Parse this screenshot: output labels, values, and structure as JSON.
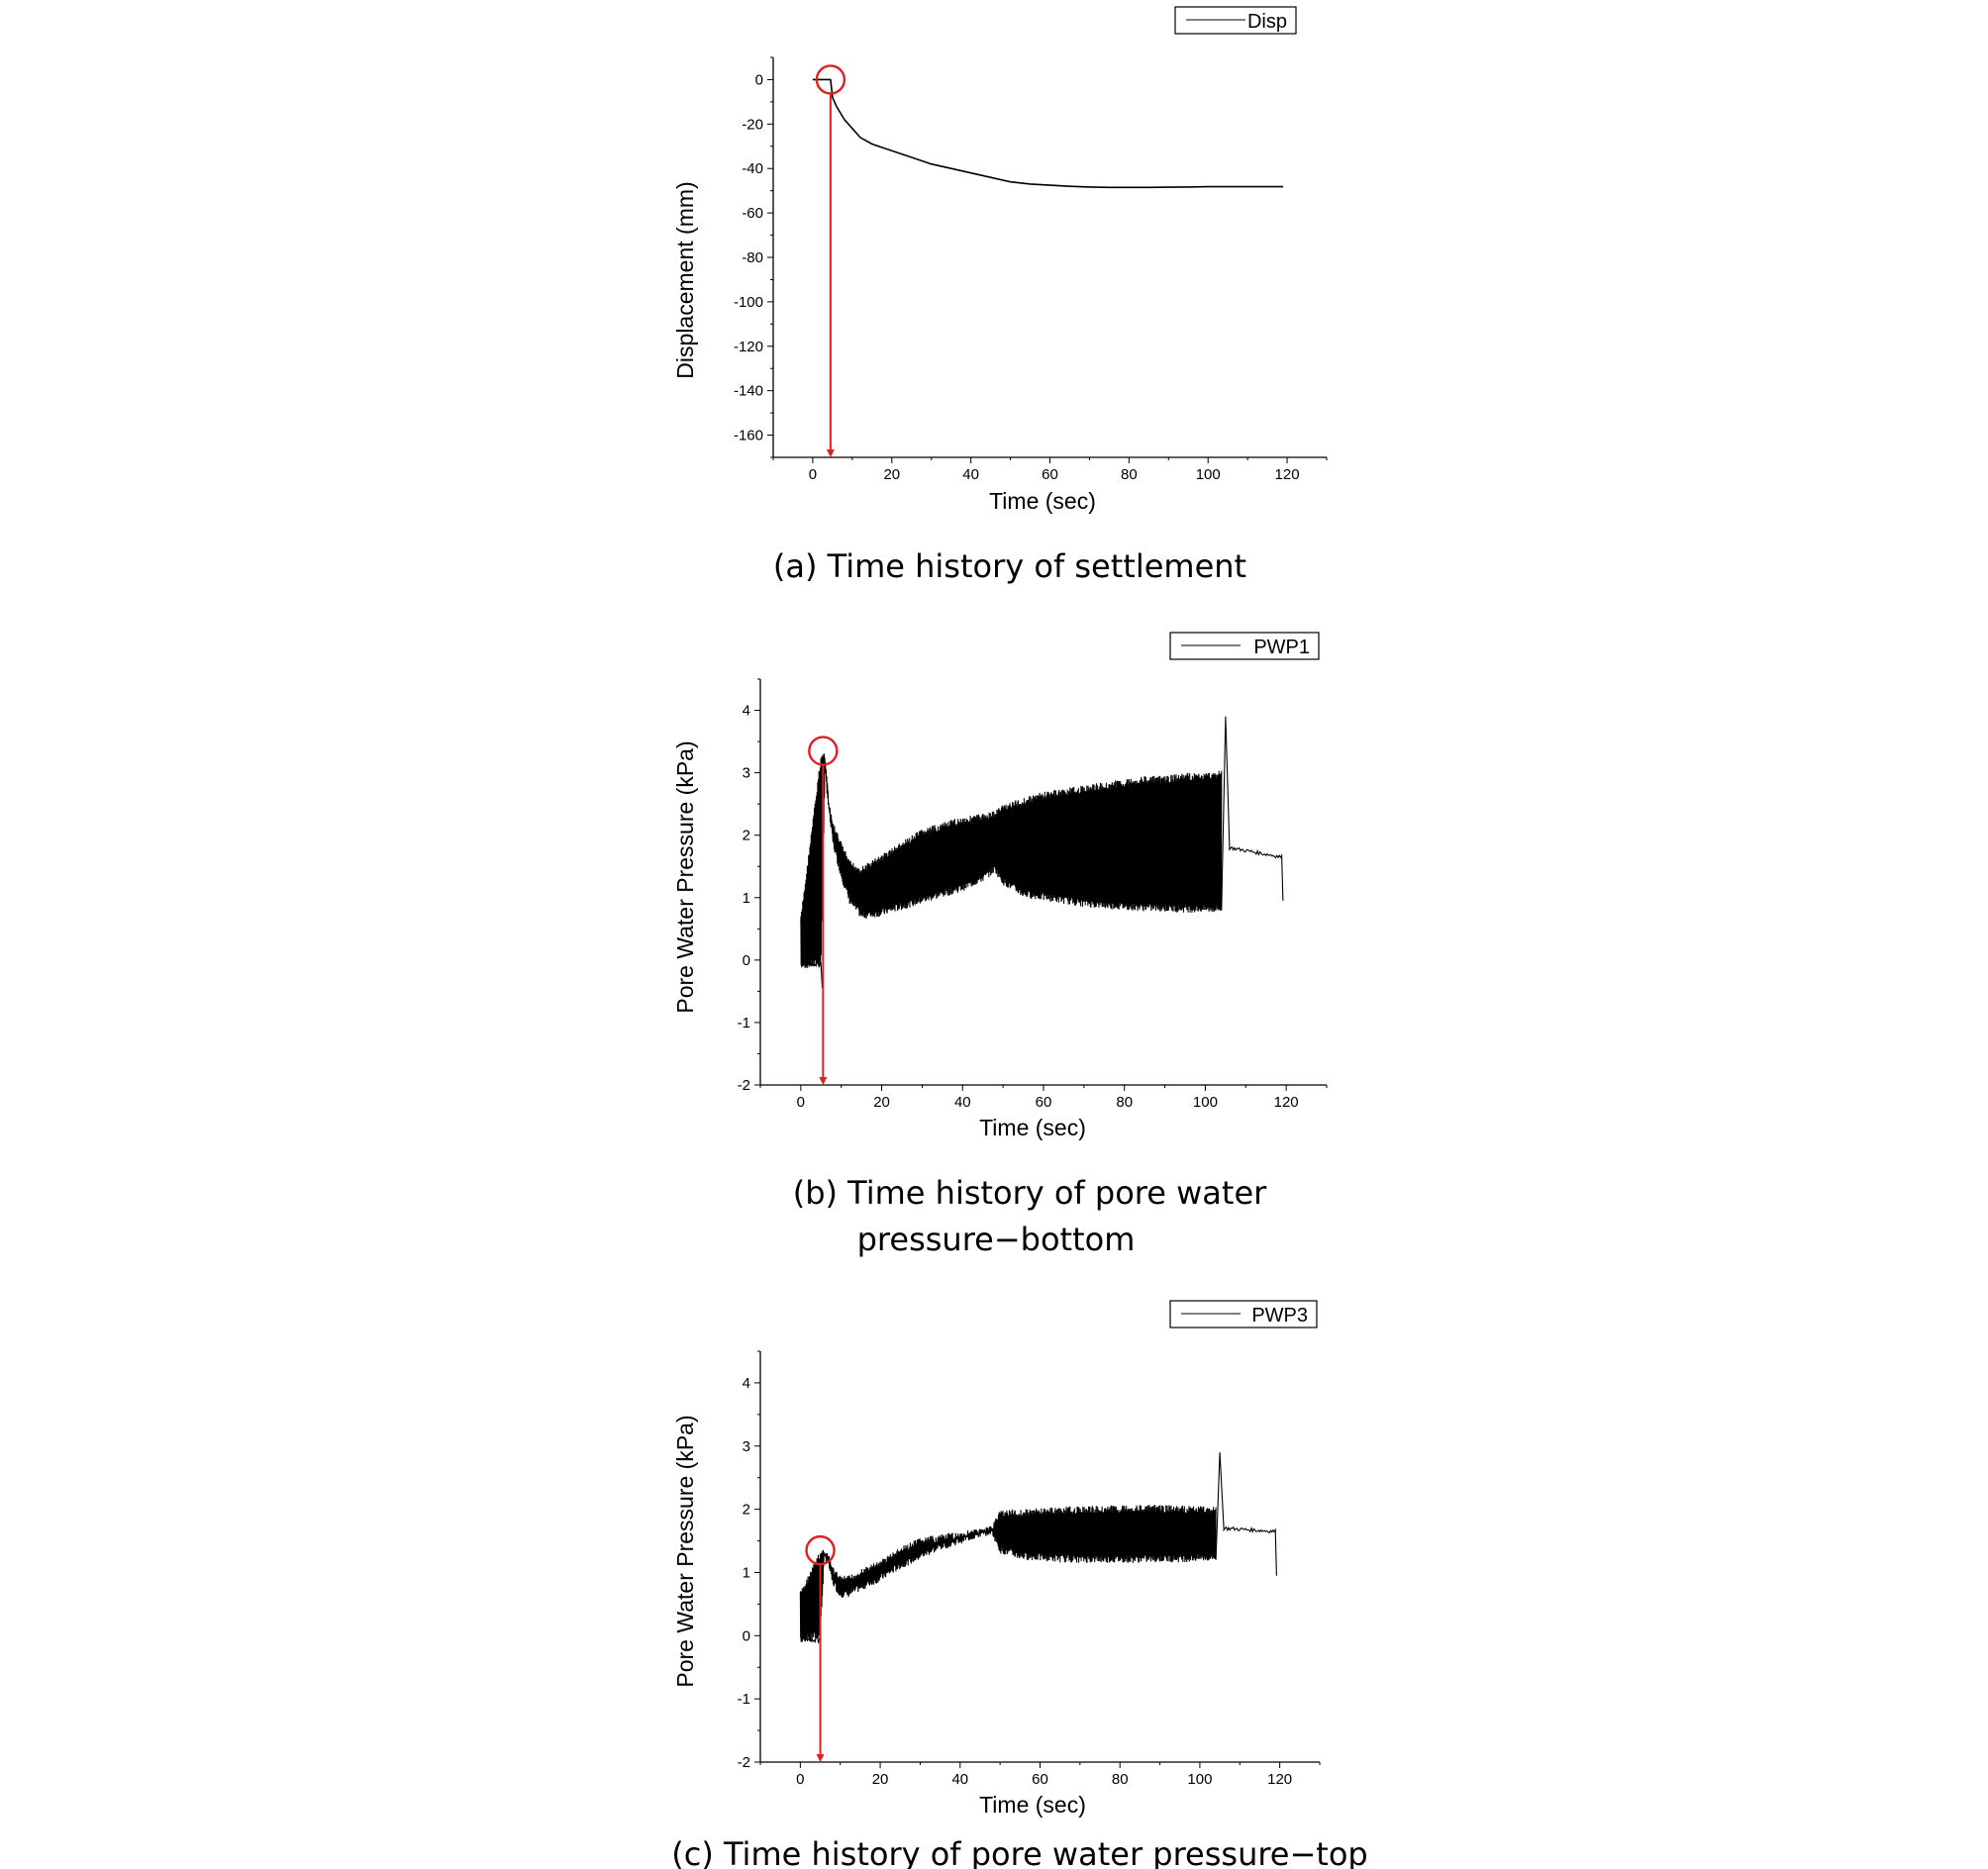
{
  "chart_data": [
    {
      "id": "a",
      "type": "line",
      "caption": "(a)  Time  history  of  settlement",
      "xlabel": "Time (sec)",
      "ylabel": "Displacement (mm)",
      "xlim": [
        -10,
        130
      ],
      "ylim": [
        -170,
        10
      ],
      "xticks": [
        0,
        20,
        40,
        60,
        80,
        100,
        120
      ],
      "yticks": [
        0,
        -20,
        -40,
        -60,
        -80,
        -100,
        -120,
        -140,
        -160
      ],
      "legend": [
        "Disp"
      ],
      "legend_position": "top-right",
      "grid": false,
      "series": [
        {
          "name": "Disp",
          "x": [
            0,
            4.5,
            5,
            6,
            7,
            8,
            10,
            12,
            15,
            20,
            25,
            30,
            35,
            40,
            45,
            50,
            55,
            60,
            65,
            70,
            75,
            80,
            85,
            90,
            95,
            100,
            105,
            110,
            115,
            119
          ],
          "y": [
            0,
            0,
            -8,
            -12,
            -15,
            -18,
            -22,
            -26,
            -29,
            -32,
            -35,
            -38,
            -40,
            -42,
            -44,
            -46,
            -47,
            -47.5,
            -48,
            -48.3,
            -48.5,
            -48.5,
            -48.5,
            -48.4,
            -48.3,
            -48.2,
            -48.2,
            -48.2,
            -48.2,
            -48.2
          ]
        }
      ],
      "annotations": [
        {
          "type": "circle",
          "x": 4.5,
          "y": 0
        },
        {
          "type": "arrow",
          "x": 4.5,
          "y_from": 0,
          "y_to": -170
        }
      ]
    },
    {
      "id": "b",
      "type": "line",
      "caption_lines": [
        "(b)  Time  history  of  pore  water",
        "pressure−bottom"
      ],
      "xlabel": "Time (sec)",
      "ylabel": "Pore Water Pressure (kPa)",
      "xlim": [
        -10,
        130
      ],
      "ylim": [
        -2,
        4.5
      ],
      "xticks": [
        0,
        20,
        40,
        60,
        80,
        100,
        120
      ],
      "yticks": [
        -2,
        -1,
        0,
        1,
        2,
        3,
        4
      ],
      "legend": [
        "PWP1"
      ],
      "legend_position": "top-right",
      "grid": false,
      "series": [
        {
          "name": "PWP1",
          "x": [
            0,
            5,
            6,
            7,
            8,
            10,
            12,
            15,
            20,
            25,
            30,
            35,
            40,
            45,
            48,
            50,
            55,
            60,
            65,
            70,
            75,
            80,
            85,
            90,
            95,
            100,
            104
          ],
          "upper": [
            0.7,
            3.3,
            3.35,
            2.5,
            2.2,
            1.9,
            1.6,
            1.5,
            1.7,
            1.9,
            2.1,
            2.2,
            2.3,
            2.35,
            2.4,
            2.5,
            2.6,
            2.7,
            2.75,
            2.8,
            2.85,
            2.9,
            2.95,
            2.95,
            3.0,
            3.0,
            3.05
          ],
          "lower": [
            -0.15,
            -0.1,
            3.0,
            2.3,
            1.8,
            1.3,
            0.9,
            0.65,
            0.7,
            0.8,
            0.9,
            1.0,
            1.1,
            1.25,
            1.4,
            1.2,
            1.0,
            0.95,
            0.9,
            0.85,
            0.82,
            0.8,
            0.78,
            0.77,
            0.76,
            0.76,
            0.76
          ],
          "tail": {
            "x": [
              104,
              105,
              106,
              110,
              115,
              119,
              119.2
            ],
            "y": [
              0.8,
              3.9,
              1.8,
              1.72,
              1.68,
              1.65,
              0.95
            ]
          },
          "start_spike": {
            "x": [
              0,
              0.2,
              0.3,
              5.3
            ],
            "y": [
              0.7,
              -0.1,
              -0.05,
              -0.45
            ]
          }
        }
      ],
      "annotations": [
        {
          "type": "circle",
          "x": 5.5,
          "y": 3.35
        },
        {
          "type": "arrow",
          "x": 5.5,
          "y_from": 3.35,
          "y_to": -2
        }
      ]
    },
    {
      "id": "c",
      "type": "line",
      "caption": "(c)  Time  history  of  pore  water  pressure−top",
      "xlabel": "Time (sec)",
      "ylabel": "Pore Water Pressure (kPa)",
      "xlim": [
        -10,
        130
      ],
      "ylim": [
        -2,
        4.5
      ],
      "xticks": [
        0,
        20,
        40,
        60,
        80,
        100,
        120
      ],
      "yticks": [
        -2,
        -1,
        0,
        1,
        2,
        3,
        4
      ],
      "legend": [
        "PWP3"
      ],
      "legend_position": "top-right",
      "grid": false,
      "series": [
        {
          "name": "PWP3",
          "x": [
            0,
            5,
            6,
            7,
            8,
            10,
            12,
            15,
            20,
            25,
            30,
            35,
            40,
            45,
            48,
            50,
            55,
            60,
            65,
            70,
            75,
            80,
            85,
            90,
            95,
            100,
            104
          ],
          "upper": [
            0.7,
            1.35,
            1.4,
            1.3,
            1.1,
            0.95,
            0.95,
            1.05,
            1.2,
            1.4,
            1.55,
            1.6,
            1.65,
            1.7,
            1.75,
            2.0,
            2.0,
            2.02,
            2.04,
            2.05,
            2.06,
            2.07,
            2.07,
            2.07,
            2.06,
            2.06,
            2.05
          ],
          "lower": [
            -0.1,
            -0.05,
            1.2,
            1.1,
            0.8,
            0.6,
            0.6,
            0.7,
            0.85,
            1.05,
            1.2,
            1.35,
            1.45,
            1.55,
            1.6,
            1.3,
            1.2,
            1.18,
            1.16,
            1.15,
            1.15,
            1.15,
            1.15,
            1.16,
            1.16,
            1.17,
            1.18
          ],
          "tail": {
            "x": [
              104,
              105,
              106,
              110,
              115,
              119,
              119.2
            ],
            "y": [
              1.2,
              2.9,
              1.7,
              1.68,
              1.66,
              1.65,
              0.95
            ]
          },
          "start_spike": {
            "x": [
              0,
              0.2,
              0.3,
              5.3
            ],
            "y": [
              0.7,
              -0.1,
              -0.05,
              -0.05
            ]
          }
        }
      ],
      "annotations": [
        {
          "type": "circle",
          "x": 5,
          "y": 1.35
        },
        {
          "type": "arrow",
          "x": 5,
          "y_from": 1.35,
          "y_to": -2
        }
      ]
    }
  ],
  "colors": {
    "line": "#000000",
    "annotation": "#e02020"
  }
}
